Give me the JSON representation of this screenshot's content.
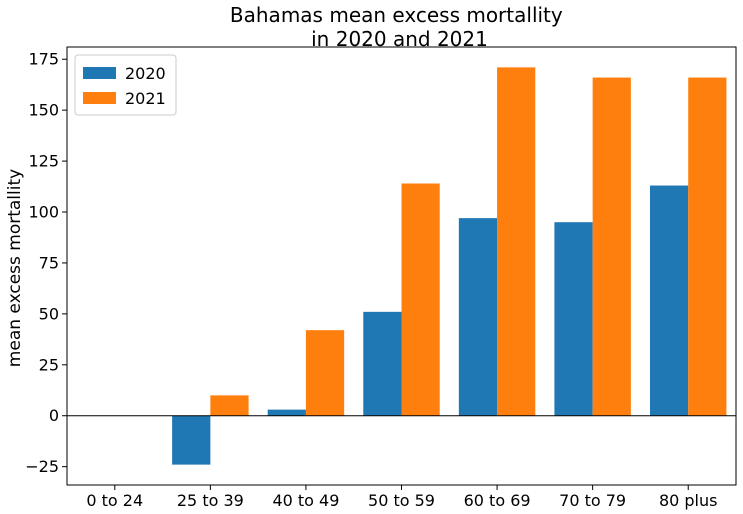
{
  "chart_data": {
    "type": "bar",
    "title": "Bahamas mean excess mortallity\nin 2020 and 2021",
    "title_lines": [
      "Bahamas mean excess mortallity",
      "in 2020 and 2021"
    ],
    "xlabel": "",
    "ylabel": "mean excess mortallity",
    "categories": [
      "0 to 24",
      "25 to 39",
      "40 to 49",
      "50 to 59",
      "60 to 69",
      "70 to 79",
      "80 plus"
    ],
    "series": [
      {
        "name": "2020",
        "color": "#1f77b4",
        "values": [
          0,
          -24,
          3,
          51,
          97,
          95,
          113
        ]
      },
      {
        "name": "2021",
        "color": "#ff7f0e",
        "values": [
          0,
          10,
          42,
          114,
          171,
          166,
          166
        ]
      }
    ],
    "ylim": [
      -34,
      181
    ],
    "yticks": [
      -25,
      0,
      25,
      50,
      75,
      100,
      125,
      150,
      175
    ],
    "zero_line": true,
    "grid": false,
    "legend": {
      "position": "top-left",
      "entries": [
        "2020",
        "2021"
      ]
    }
  }
}
